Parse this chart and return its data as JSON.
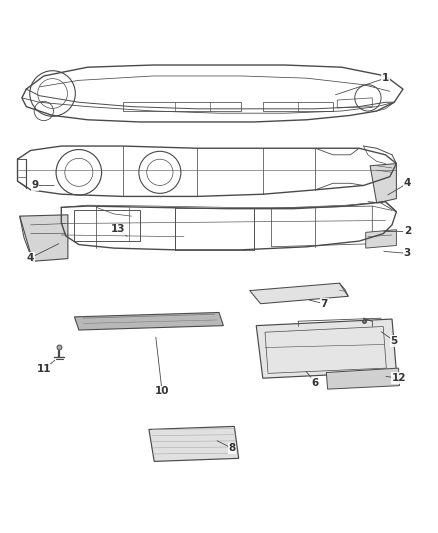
{
  "background_color": "#ffffff",
  "line_color": "#4a4a4a",
  "label_color": "#333333",
  "parts_labels": [
    [
      1,
      0.88,
      0.93,
      0.76,
      0.89
    ],
    [
      2,
      0.93,
      0.58,
      0.87,
      0.58
    ],
    [
      3,
      0.93,
      0.53,
      0.87,
      0.535
    ],
    [
      4,
      0.93,
      0.69,
      0.88,
      0.66
    ],
    [
      4,
      0.07,
      0.52,
      0.14,
      0.555
    ],
    [
      5,
      0.9,
      0.33,
      0.865,
      0.355
    ],
    [
      6,
      0.72,
      0.235,
      0.695,
      0.265
    ],
    [
      7,
      0.74,
      0.415,
      0.7,
      0.425
    ],
    [
      8,
      0.53,
      0.085,
      0.49,
      0.105
    ],
    [
      9,
      0.08,
      0.685,
      0.13,
      0.685
    ],
    [
      10,
      0.37,
      0.215,
      0.355,
      0.345
    ],
    [
      11,
      0.1,
      0.265,
      0.13,
      0.29
    ],
    [
      12,
      0.91,
      0.245,
      0.875,
      0.25
    ],
    [
      13,
      0.27,
      0.585,
      0.295,
      0.565
    ]
  ]
}
